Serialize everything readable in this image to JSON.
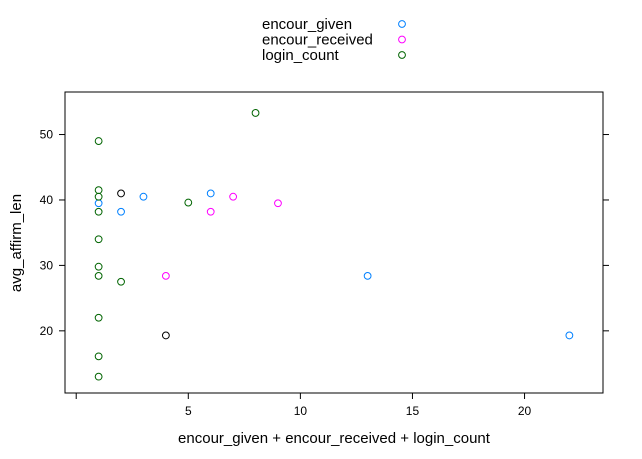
{
  "chart_data": {
    "type": "scatter",
    "xlabel": "encour_given + encour_received + login_count",
    "ylabel": "avg_affirm_len",
    "xlim": [
      -0.5,
      23.5
    ],
    "ylim": [
      10.5,
      56.5
    ],
    "x_ticks": [
      5,
      10,
      15,
      20
    ],
    "x_tick_labels": [
      "5",
      "10",
      "15",
      "20"
    ],
    "y_ticks": [
      20,
      30,
      40,
      50
    ],
    "y_tick_labels": [
      "20",
      "30",
      "40",
      "50"
    ],
    "legend_position": "top-center",
    "series": [
      {
        "name": "encour_given",
        "color": "#0080ff",
        "points": [
          {
            "x": 1,
            "y": 39.5
          },
          {
            "x": 2,
            "y": 38.2
          },
          {
            "x": 3,
            "y": 40.5
          },
          {
            "x": 6,
            "y": 41.0
          },
          {
            "x": 13,
            "y": 28.4
          },
          {
            "x": 22,
            "y": 19.3
          }
        ]
      },
      {
        "name": "encour_received",
        "color": "#ff00ff",
        "points": [
          {
            "x": 4,
            "y": 28.4
          },
          {
            "x": 6,
            "y": 38.2
          },
          {
            "x": 7,
            "y": 40.5
          },
          {
            "x": 9,
            "y": 39.5
          }
        ]
      },
      {
        "name": "login_count",
        "color": "#006400",
        "points": [
          {
            "x": 1,
            "y": 49.0
          },
          {
            "x": 1,
            "y": 41.5
          },
          {
            "x": 1,
            "y": 40.5
          },
          {
            "x": 1,
            "y": 38.2
          },
          {
            "x": 1,
            "y": 34.0
          },
          {
            "x": 1,
            "y": 29.8
          },
          {
            "x": 1,
            "y": 28.4
          },
          {
            "x": 1,
            "y": 22.0
          },
          {
            "x": 1,
            "y": 16.1
          },
          {
            "x": 1,
            "y": 13.0
          },
          {
            "x": 2,
            "y": 27.5
          },
          {
            "x": 5,
            "y": 39.6
          },
          {
            "x": 8,
            "y": 53.3
          }
        ]
      },
      {
        "color": "#000000",
        "points": [
          {
            "x": 2,
            "y": 41.0
          },
          {
            "x": 4,
            "y": 19.3
          }
        ]
      }
    ]
  }
}
